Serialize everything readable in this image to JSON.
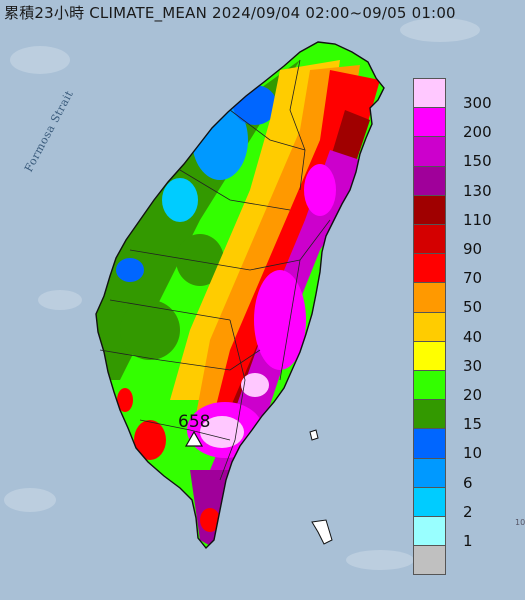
{
  "title": "累積23小時 CLIMATE_MEAN 2024/09/04 02:00~09/05 01:00",
  "strait_label": "Formosa Strait",
  "max_station": {
    "value": "658",
    "icon": "triangle-marker-icon"
  },
  "edge_text": "10",
  "legend": [
    {
      "label": "300",
      "color": "#ffc8ff"
    },
    {
      "label": "200",
      "color": "#ff00ff"
    },
    {
      "label": "150",
      "color": "#cc00cc"
    },
    {
      "label": "130",
      "color": "#a0009a"
    },
    {
      "label": "110",
      "color": "#a00000"
    },
    {
      "label": "90",
      "color": "#d40000"
    },
    {
      "label": "70",
      "color": "#ff0000"
    },
    {
      "label": "50",
      "color": "#ff9900"
    },
    {
      "label": "40",
      "color": "#ffcc00"
    },
    {
      "label": "30",
      "color": "#ffff00"
    },
    {
      "label": "20",
      "color": "#33ff00"
    },
    {
      "label": "15",
      "color": "#339900"
    },
    {
      "label": "10",
      "color": "#0066ff"
    },
    {
      "label": "6",
      "color": "#0099ff"
    },
    {
      "label": "2",
      "color": "#00ccff"
    },
    {
      "label": "1",
      "color": "#99ffff"
    },
    {
      "label": "",
      "color": "#c0c0c0"
    }
  ],
  "colors": {
    "sea": "#a9c0d6",
    "land_base": "#c0c0c0"
  }
}
